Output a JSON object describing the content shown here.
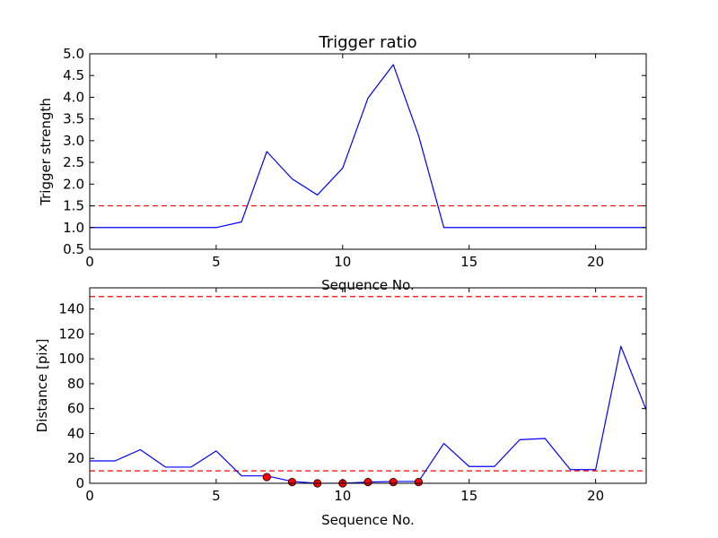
{
  "chart_data": [
    {
      "type": "line",
      "title": "Trigger ratio",
      "xlabel": "Sequence No.",
      "ylabel": "Trigger strength",
      "xlim": [
        0,
        22
      ],
      "ylim": [
        0.5,
        5.0
      ],
      "xticks": [
        0,
        5,
        10,
        15,
        20
      ],
      "xtick_labels": [
        "0",
        "5",
        "10",
        "15",
        "20"
      ],
      "yticks": [
        0.5,
        1.0,
        1.5,
        2.0,
        2.5,
        3.0,
        3.5,
        4.0,
        4.5,
        5.0
      ],
      "ytick_labels": [
        "0.5",
        "1.0",
        "1.5",
        "2.0",
        "2.5",
        "3.0",
        "3.5",
        "4.0",
        "4.5",
        "5.0"
      ],
      "grid": false,
      "series": [
        {
          "color": "#0000ff",
          "x": [
            0,
            1,
            2,
            3,
            4,
            5,
            6,
            7,
            8,
            9,
            10,
            11,
            12,
            13,
            14,
            15,
            16,
            17,
            18,
            19,
            20,
            21,
            22
          ],
          "y": [
            1.0,
            1.0,
            1.0,
            1.0,
            1.0,
            1.0,
            1.13,
            2.75,
            2.12,
            1.75,
            2.37,
            3.98,
            4.75,
            3.12,
            1.0,
            1.0,
            1.0,
            1.0,
            1.0,
            1.0,
            1.0,
            1.0,
            1.0
          ]
        }
      ],
      "hlines": [
        {
          "y": 1.5,
          "color": "#ff0000",
          "style": "dashed"
        }
      ]
    },
    {
      "type": "line",
      "title": "",
      "xlabel": "Sequence No.",
      "ylabel": "Distance [pix]",
      "xlim": [
        0,
        22
      ],
      "ylim": [
        0,
        157
      ],
      "xticks": [
        0,
        5,
        10,
        15,
        20
      ],
      "xtick_labels": [
        "0",
        "5",
        "10",
        "15",
        "20"
      ],
      "yticks": [
        0,
        20,
        40,
        60,
        80,
        100,
        120,
        140
      ],
      "ytick_labels": [
        "0",
        "20",
        "40",
        "60",
        "80",
        "100",
        "120",
        "140"
      ],
      "grid": false,
      "series": [
        {
          "color": "#0000ff",
          "x": [
            0,
            1,
            2,
            3,
            4,
            5,
            6,
            7,
            8,
            9,
            10,
            11,
            12,
            13,
            14,
            15,
            16,
            17,
            18,
            19,
            20,
            21,
            22
          ],
          "y": [
            18,
            18,
            27,
            13,
            13,
            26,
            6,
            6,
            1.5,
            0,
            0,
            1,
            1.5,
            1.5,
            32,
            13.5,
            13.5,
            35,
            36,
            11,
            11,
            110,
            59
          ]
        }
      ],
      "markers": {
        "color": "#ff0000",
        "x": [
          7,
          8,
          9,
          10,
          11,
          12,
          13
        ],
        "y": [
          5,
          1,
          0,
          0,
          1,
          1,
          1
        ]
      },
      "hlines": [
        {
          "y": 150,
          "color": "#ff0000",
          "style": "dashed"
        },
        {
          "y": 10,
          "color": "#ff0000",
          "style": "dashed"
        }
      ]
    }
  ]
}
